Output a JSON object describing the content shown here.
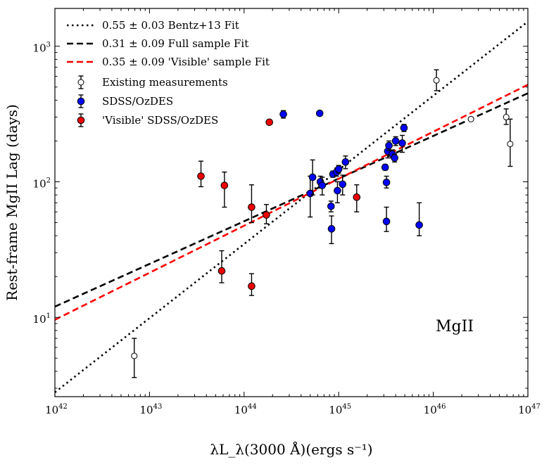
{
  "chart_data": {
    "type": "scatter",
    "title": "",
    "xlabel": "λL_λ(3000 Å)(ergs s⁻¹)",
    "ylabel": "Rest-frame MgII Lag (days)",
    "xscale": "log",
    "yscale": "log",
    "xlim": [
      1e+42,
      1e+47
    ],
    "ylim": [
      2.6,
      1900
    ],
    "x_ticks": [
      {
        "base": "10",
        "exp": "42",
        "value": 1e+42
      },
      {
        "base": "10",
        "exp": "43",
        "value": 1e+43
      },
      {
        "base": "10",
        "exp": "44",
        "value": 1e+44
      },
      {
        "base": "10",
        "exp": "45",
        "value": 1e+45
      },
      {
        "base": "10",
        "exp": "46",
        "value": 1e+46
      },
      {
        "base": "10",
        "exp": "47",
        "value": 1e+47
      }
    ],
    "y_ticks": [
      {
        "base": "10",
        "exp": "1",
        "value": 10
      },
      {
        "base": "10",
        "exp": "2",
        "value": 100
      },
      {
        "base": "10",
        "exp": "3",
        "value": 1000
      }
    ],
    "annotation": "MgII",
    "legend_position": "top-left",
    "lines": [
      {
        "name": "0.55 ± 0.03 Bentz+13 Fit",
        "style": "dotted",
        "color": "#000000",
        "points": [
          [
            1e+42,
            2.8
          ],
          [
            1e+47,
            1520
          ]
        ]
      },
      {
        "name": "0.31 ± 0.09 Full sample Fit",
        "style": "dashed",
        "color": "#000000",
        "points": [
          [
            1e+42,
            12
          ],
          [
            1e+47,
            450
          ]
        ]
      },
      {
        "name": "0.35 ± 0.09 'Visible' sample Fit",
        "style": "dashed",
        "color": "#ff0000",
        "points": [
          [
            1e+42,
            9.6
          ],
          [
            1e+47,
            520
          ]
        ]
      }
    ],
    "series": [
      {
        "name": "Existing measurements",
        "marker": "open-circle",
        "color": "#000000",
        "points": [
          {
            "x": 6.9e+42,
            "y": 5.2,
            "lo": 3.6,
            "hi": 7.0
          },
          {
            "x": 1.08e+46,
            "y": 560,
            "lo": 470,
            "hi": 670
          },
          {
            "x": 2.5e+46,
            "y": 290,
            "lo": 285,
            "hi": 295
          },
          {
            "x": 5.9e+46,
            "y": 300,
            "lo": 265,
            "hi": 345
          },
          {
            "x": 6.5e+46,
            "y": 190,
            "lo": 130,
            "hi": 290
          }
        ]
      },
      {
        "name": "SDSS/OzDES",
        "marker": "filled-circle",
        "color": "#0000ff",
        "points": [
          {
            "x": 2.6e+44,
            "y": 315,
            "lo": 295,
            "hi": 335
          },
          {
            "x": 6.3e+44,
            "y": 320,
            "lo": 315,
            "hi": 325
          },
          {
            "x": 5e+44,
            "y": 82,
            "lo": 55,
            "hi": 110
          },
          {
            "x": 5.3e+44,
            "y": 108,
            "lo": 80,
            "hi": 145
          },
          {
            "x": 6.4e+44,
            "y": 100,
            "lo": 92,
            "hi": 110
          },
          {
            "x": 6.7e+44,
            "y": 94,
            "lo": 80,
            "hi": 108
          },
          {
            "x": 8.3e+44,
            "y": 66,
            "lo": 60,
            "hi": 72
          },
          {
            "x": 8.4e+44,
            "y": 45,
            "lo": 35,
            "hi": 56
          },
          {
            "x": 8.7e+44,
            "y": 114,
            "lo": 108,
            "hi": 120
          },
          {
            "x": 9.5e+44,
            "y": 118,
            "lo": 110,
            "hi": 126
          },
          {
            "x": 9.7e+44,
            "y": 86,
            "lo": 70,
            "hi": 100
          },
          {
            "x": 1e+45,
            "y": 124,
            "lo": 116,
            "hi": 132
          },
          {
            "x": 1.1e+45,
            "y": 96,
            "lo": 80,
            "hi": 112
          },
          {
            "x": 1.18e+45,
            "y": 140,
            "lo": 125,
            "hi": 155
          },
          {
            "x": 3.1e+45,
            "y": 128,
            "lo": 122,
            "hi": 134
          },
          {
            "x": 3.2e+45,
            "y": 99,
            "lo": 90,
            "hi": 110
          },
          {
            "x": 3.2e+45,
            "y": 51,
            "lo": 43,
            "hi": 65
          },
          {
            "x": 3.3e+45,
            "y": 168,
            "lo": 150,
            "hi": 188
          },
          {
            "x": 3.4e+45,
            "y": 185,
            "lo": 170,
            "hi": 200
          },
          {
            "x": 3.7e+45,
            "y": 160,
            "lo": 150,
            "hi": 172
          },
          {
            "x": 3.9e+45,
            "y": 150,
            "lo": 140,
            "hi": 160
          },
          {
            "x": 4e+45,
            "y": 200,
            "lo": 185,
            "hi": 215
          },
          {
            "x": 4.7e+45,
            "y": 193,
            "lo": 165,
            "hi": 220
          },
          {
            "x": 4.9e+45,
            "y": 250,
            "lo": 235,
            "hi": 265
          },
          {
            "x": 7.1e+45,
            "y": 48,
            "lo": 40,
            "hi": 70
          }
        ]
      },
      {
        "name": "'Visible' SDSS/OzDES",
        "marker": "filled-circle",
        "color": "#ee0000",
        "points": [
          {
            "x": 3.5e+43,
            "y": 110,
            "lo": 92,
            "hi": 142
          },
          {
            "x": 6.2e+43,
            "y": 94,
            "lo": 65,
            "hi": 118
          },
          {
            "x": 5.8e+43,
            "y": 22,
            "lo": 18,
            "hi": 31
          },
          {
            "x": 1.2e+44,
            "y": 65,
            "lo": 50,
            "hi": 95
          },
          {
            "x": 1.2e+44,
            "y": 17,
            "lo": 14.5,
            "hi": 21
          },
          {
            "x": 1.72e+44,
            "y": 57,
            "lo": 49,
            "hi": 68
          },
          {
            "x": 1.85e+44,
            "y": 275,
            "lo": 270,
            "hi": 280
          },
          {
            "x": 1.55e+45,
            "y": 77,
            "lo": 60,
            "hi": 95
          }
        ]
      }
    ]
  }
}
